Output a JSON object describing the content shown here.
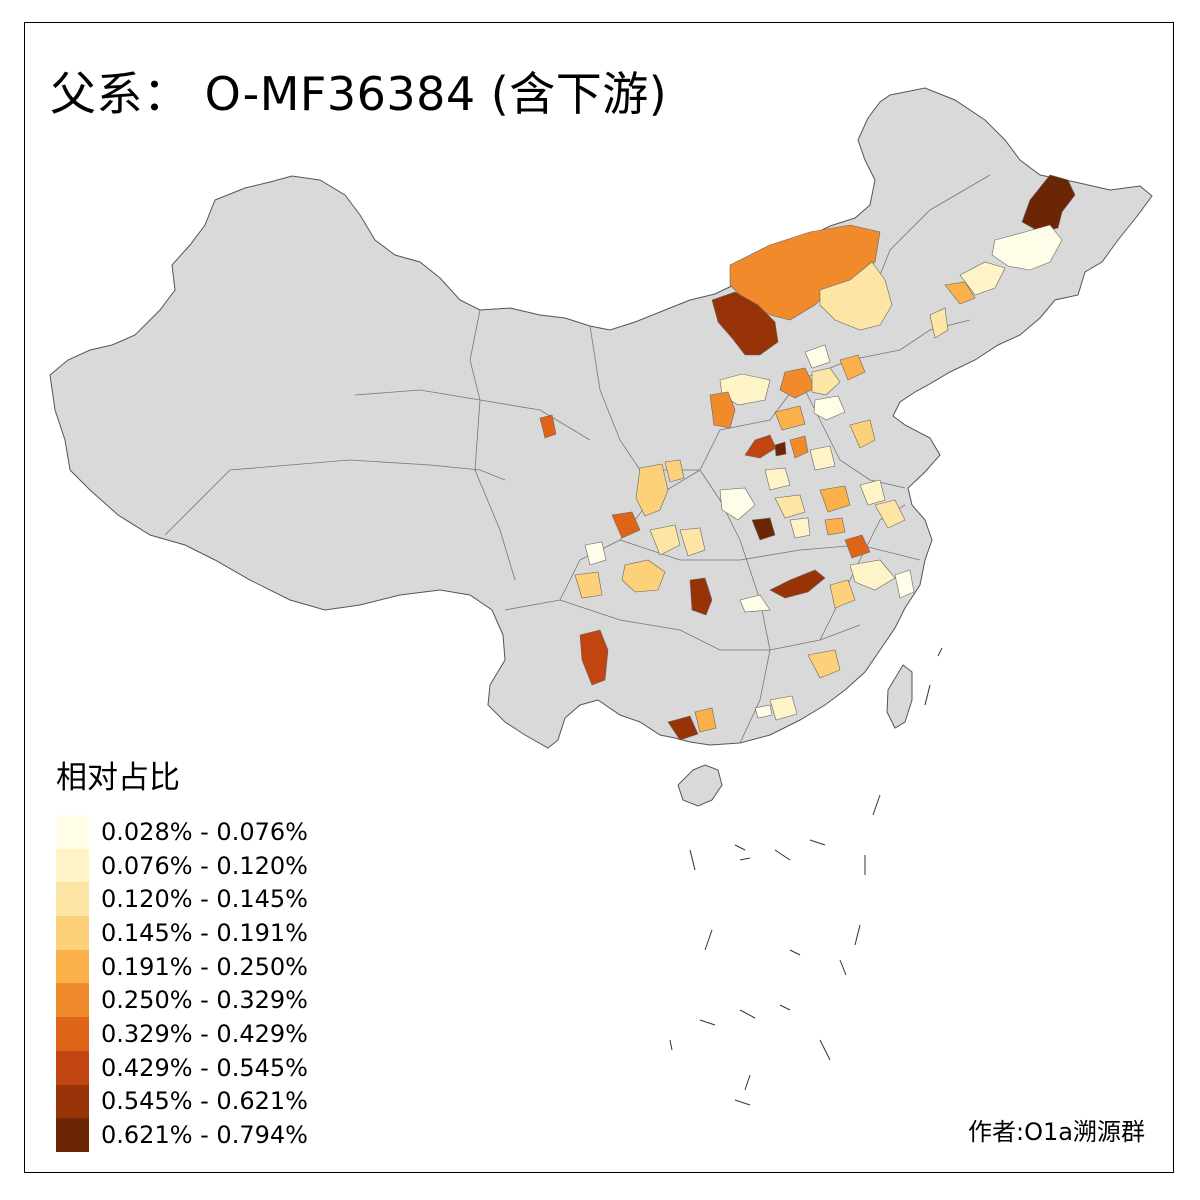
{
  "title": "父系： O-MF36384 (含下游)",
  "legend": {
    "title": "相对占比",
    "items": [
      {
        "label": "0.028% - 0.076%",
        "color": "#fffde8"
      },
      {
        "label": "0.076% - 0.120%",
        "color": "#fff3c8"
      },
      {
        "label": "0.120% - 0.145%",
        "color": "#fde6a5"
      },
      {
        "label": "0.145% - 0.191%",
        "color": "#fdd07a"
      },
      {
        "label": "0.191% - 0.250%",
        "color": "#fbb04a"
      },
      {
        "label": "0.250% - 0.329%",
        "color": "#f08a2b"
      },
      {
        "label": "0.329% - 0.429%",
        "color": "#de6517"
      },
      {
        "label": "0.429% - 0.545%",
        "color": "#c04510"
      },
      {
        "label": "0.545% - 0.621%",
        "color": "#983308"
      },
      {
        "label": "0.621% - 0.794%",
        "color": "#6b2606"
      }
    ]
  },
  "author": "作者:O1a溯源群",
  "base_color": "#d9d9d9"
}
